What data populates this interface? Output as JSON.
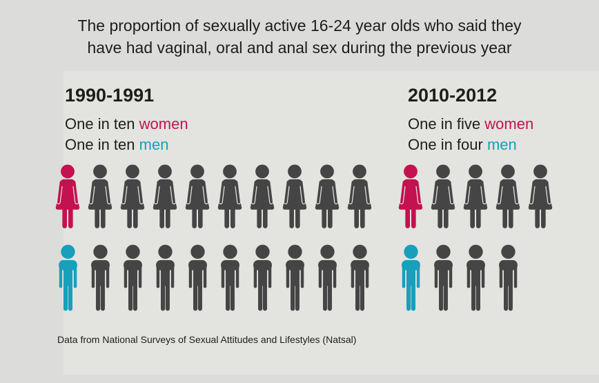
{
  "title": {
    "line1": "The proportion of sexually active 16-24 year olds who said they",
    "line2": "have had vaginal, oral and anal sex during the previous year"
  },
  "footer": "Data from National Surveys of Sexual Attitudes and Lifestyles (Natsal)",
  "colors": {
    "women": "#c3124f",
    "men": "#189fbc",
    "figure": "#454545",
    "background": "#dcdcda",
    "panel": "#e3e3e0",
    "text": "#1d1d1b"
  },
  "sections": [
    {
      "period": "1990-1991",
      "women_prefix": "One in ten ",
      "women_word": "women",
      "men_prefix": "One in ten ",
      "men_word": "men",
      "women_total": 10,
      "women_highlighted": 1,
      "men_total": 10,
      "men_highlighted": 1
    },
    {
      "period": "2010-2012",
      "women_prefix": "One in five ",
      "women_word": "women",
      "men_prefix": "One in four ",
      "men_word": "men",
      "women_total": 5,
      "women_highlighted": 1,
      "men_total": 4,
      "men_highlighted": 1
    }
  ],
  "chart_data": {
    "type": "pictogram",
    "title": "The proportion of sexually active 16-24 year olds who said they have had vaginal, oral and anal sex during the previous year",
    "source": "Data from National Surveys of Sexual Attitudes and Lifestyles (Natsal)",
    "groups": [
      {
        "period": "1990-1991",
        "series": [
          {
            "name": "women",
            "label": "One in ten women",
            "value": "1 in 10",
            "icons_total": 10,
            "icons_highlighted": 1
          },
          {
            "name": "men",
            "label": "One in ten men",
            "value": "1 in 10",
            "icons_total": 10,
            "icons_highlighted": 1
          }
        ]
      },
      {
        "period": "2010-2012",
        "series": [
          {
            "name": "women",
            "label": "One in five women",
            "value": "1 in 5",
            "icons_total": 5,
            "icons_highlighted": 1
          },
          {
            "name": "men",
            "label": "One in four men",
            "value": "1 in 4",
            "icons_total": 4,
            "icons_highlighted": 1
          }
        ]
      }
    ],
    "legend": {
      "women_highlight_color": "#c3124f",
      "men_highlight_color": "#189fbc",
      "unhighlighted_color": "#454545",
      "position": "inline-text"
    }
  }
}
